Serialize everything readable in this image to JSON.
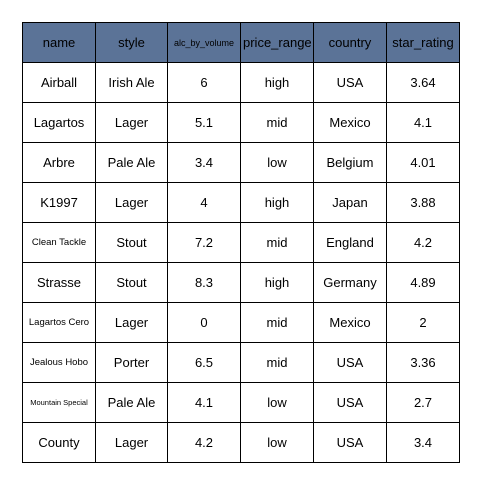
{
  "colors": {
    "header_bg": "#5b7397",
    "cell_bg": "#ffffff",
    "border": "#000000",
    "text": "#000000"
  },
  "chart_data": {
    "type": "table",
    "columns": [
      "name",
      "style",
      "alc_by_volume",
      "price_range",
      "country",
      "star_rating"
    ],
    "rows": [
      [
        "Airball",
        "Irish Ale",
        "6",
        "high",
        "USA",
        "3.64"
      ],
      [
        "Lagartos",
        "Lager",
        "5.1",
        "mid",
        "Mexico",
        "4.1"
      ],
      [
        "Arbre",
        "Pale Ale",
        "3.4",
        "low",
        "Belgium",
        "4.01"
      ],
      [
        "K1997",
        "Lager",
        "4",
        "high",
        "Japan",
        "3.88"
      ],
      [
        "Clean Tackle",
        "Stout",
        "7.2",
        "mid",
        "England",
        "4.2"
      ],
      [
        "Strasse",
        "Stout",
        "8.3",
        "high",
        "Germany",
        "4.89"
      ],
      [
        "Lagartos Cero",
        "Lager",
        "0",
        "mid",
        "Mexico",
        "2"
      ],
      [
        "Jealous Hobo",
        "Porter",
        "6.5",
        "mid",
        "USA",
        "3.36"
      ],
      [
        "Mountain Special",
        "Pale Ale",
        "4.1",
        "low",
        "USA",
        "2.7"
      ],
      [
        "County",
        "Lager",
        "4.2",
        "low",
        "USA",
        "3.4"
      ]
    ]
  }
}
